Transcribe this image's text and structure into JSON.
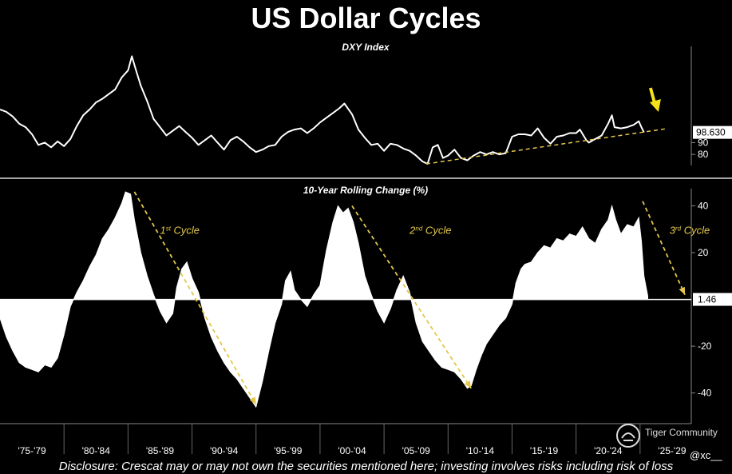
{
  "title": "US Dollar Cycles",
  "disclosure": "Disclosure: Crescat may or may not own the securities mentioned here; investing involves risks including risk of loss",
  "watermark": {
    "brand": "Tiger Community",
    "handle": "@xc__"
  },
  "colors": {
    "background": "#000000",
    "line": "#ffffff",
    "fill": "#ffffff",
    "annotation": "#e3c74a",
    "arrow": "#f5e21a"
  },
  "chart_data": [
    {
      "type": "line",
      "title": "DXY Index",
      "x_range": [
        1975,
        2029
      ],
      "ylim": [
        72,
        170
      ],
      "yticks": [
        80,
        90
      ],
      "last_value_label": "98.630",
      "points": [
        [
          1975.0,
          118
        ],
        [
          1975.5,
          116
        ],
        [
          1976.0,
          112
        ],
        [
          1976.5,
          106
        ],
        [
          1977.0,
          103
        ],
        [
          1977.5,
          97
        ],
        [
          1978.0,
          88
        ],
        [
          1978.5,
          90
        ],
        [
          1979.0,
          86
        ],
        [
          1979.5,
          91
        ],
        [
          1980.0,
          87
        ],
        [
          1980.5,
          93
        ],
        [
          1981.0,
          104
        ],
        [
          1981.5,
          113
        ],
        [
          1982.0,
          118
        ],
        [
          1982.5,
          124
        ],
        [
          1983.0,
          127
        ],
        [
          1983.5,
          131
        ],
        [
          1984.0,
          135
        ],
        [
          1984.5,
          145
        ],
        [
          1985.0,
          151
        ],
        [
          1985.3,
          163
        ],
        [
          1985.6,
          152
        ],
        [
          1986.0,
          138
        ],
        [
          1986.5,
          125
        ],
        [
          1987.0,
          110
        ],
        [
          1987.5,
          103
        ],
        [
          1988.0,
          96
        ],
        [
          1988.5,
          100
        ],
        [
          1989.0,
          104
        ],
        [
          1989.5,
          99
        ],
        [
          1990.0,
          94
        ],
        [
          1990.5,
          88
        ],
        [
          1991.0,
          92
        ],
        [
          1991.5,
          96
        ],
        [
          1992.0,
          90
        ],
        [
          1992.5,
          84
        ],
        [
          1993.0,
          92
        ],
        [
          1993.5,
          95
        ],
        [
          1994.0,
          91
        ],
        [
          1994.5,
          86
        ],
        [
          1995.0,
          82
        ],
        [
          1995.5,
          84
        ],
        [
          1996.0,
          87
        ],
        [
          1996.5,
          88
        ],
        [
          1997.0,
          95
        ],
        [
          1997.5,
          99
        ],
        [
          1998.0,
          101
        ],
        [
          1998.5,
          102
        ],
        [
          1999.0,
          98
        ],
        [
          1999.5,
          102
        ],
        [
          2000.0,
          107
        ],
        [
          2000.5,
          111
        ],
        [
          2001.0,
          115
        ],
        [
          2001.5,
          119
        ],
        [
          2001.9,
          123
        ],
        [
          2002.5,
          114
        ],
        [
          2003.0,
          101
        ],
        [
          2003.5,
          94
        ],
        [
          2004.0,
          88
        ],
        [
          2004.5,
          89
        ],
        [
          2005.0,
          83
        ],
        [
          2005.5,
          89
        ],
        [
          2006.0,
          88
        ],
        [
          2006.5,
          85
        ],
        [
          2007.0,
          83
        ],
        [
          2007.5,
          79
        ],
        [
          2008.0,
          74
        ],
        [
          2008.4,
          72
        ],
        [
          2008.8,
          86
        ],
        [
          2009.2,
          88
        ],
        [
          2009.6,
          77
        ],
        [
          2010.0,
          79
        ],
        [
          2010.5,
          84
        ],
        [
          2011.0,
          77
        ],
        [
          2011.5,
          75
        ],
        [
          2012.0,
          79
        ],
        [
          2012.5,
          82
        ],
        [
          2013.0,
          80
        ],
        [
          2013.5,
          82
        ],
        [
          2014.0,
          80
        ],
        [
          2014.5,
          81
        ],
        [
          2015.0,
          95
        ],
        [
          2015.5,
          97
        ],
        [
          2016.0,
          97
        ],
        [
          2016.5,
          96
        ],
        [
          2017.0,
          102
        ],
        [
          2017.5,
          94
        ],
        [
          2018.0,
          89
        ],
        [
          2018.5,
          95
        ],
        [
          2019.0,
          96
        ],
        [
          2019.5,
          98
        ],
        [
          2020.0,
          98
        ],
        [
          2020.3,
          101
        ],
        [
          2020.8,
          92
        ],
        [
          2021.0,
          90
        ],
        [
          2021.5,
          93
        ],
        [
          2022.0,
          96
        ],
        [
          2022.5,
          106
        ],
        [
          2022.8,
          113
        ],
        [
          2023.0,
          103
        ],
        [
          2023.5,
          102
        ],
        [
          2024.0,
          103
        ],
        [
          2024.5,
          105
        ],
        [
          2024.9,
          108
        ],
        [
          2025.1,
          103
        ],
        [
          2025.3,
          98.6
        ]
      ],
      "trendline": [
        [
          2008.3,
          72
        ],
        [
          2030.0,
          103
        ]
      ],
      "arrow_at": 2026.0
    },
    {
      "type": "area",
      "title": "10-Year Rolling Change (%)",
      "x_range": [
        1975,
        2029
      ],
      "ylim": [
        -48,
        46
      ],
      "yticks": [
        40,
        20,
        -20,
        -40
      ],
      "last_value_label": "1.46",
      "xticks": [
        "'75-'79",
        "'80-'84",
        "'85-'89",
        "'90-'94",
        "'95-'99",
        "'00-'04",
        "'05-'09",
        "'10-'14",
        "'15-'19",
        "'20-'24",
        "'25-'29"
      ],
      "points": [
        [
          1975.0,
          -8
        ],
        [
          1975.5,
          -16
        ],
        [
          1976.0,
          -22
        ],
        [
          1976.5,
          -27
        ],
        [
          1977.0,
          -29
        ],
        [
          1977.5,
          -30
        ],
        [
          1978.0,
          -31
        ],
        [
          1978.5,
          -28
        ],
        [
          1979.0,
          -29
        ],
        [
          1979.5,
          -25
        ],
        [
          1980.0,
          -15
        ],
        [
          1980.5,
          -3
        ],
        [
          1981.0,
          3
        ],
        [
          1981.5,
          8
        ],
        [
          1982.0,
          14
        ],
        [
          1982.5,
          19
        ],
        [
          1983.0,
          26
        ],
        [
          1983.5,
          30
        ],
        [
          1984.0,
          35
        ],
        [
          1984.5,
          41
        ],
        [
          1984.8,
          46
        ],
        [
          1985.2,
          45
        ],
        [
          1985.5,
          34
        ],
        [
          1986.0,
          20
        ],
        [
          1986.5,
          10
        ],
        [
          1987.0,
          2
        ],
        [
          1987.5,
          -5
        ],
        [
          1988.0,
          -10
        ],
        [
          1988.5,
          -6
        ],
        [
          1988.8,
          5
        ],
        [
          1989.2,
          13
        ],
        [
          1989.6,
          16
        ],
        [
          1990.0,
          9
        ],
        [
          1990.5,
          3
        ],
        [
          1991.0,
          -8
        ],
        [
          1991.5,
          -16
        ],
        [
          1992.0,
          -22
        ],
        [
          1992.5,
          -27
        ],
        [
          1993.0,
          -31
        ],
        [
          1993.5,
          -34
        ],
        [
          1994.0,
          -38
        ],
        [
          1994.5,
          -42
        ],
        [
          1995.0,
          -46
        ],
        [
          1995.5,
          -35
        ],
        [
          1996.0,
          -22
        ],
        [
          1996.5,
          -10
        ],
        [
          1997.0,
          -2
        ],
        [
          1997.3,
          8
        ],
        [
          1997.7,
          12
        ],
        [
          1998.0,
          4
        ],
        [
          1998.5,
          0
        ],
        [
          1999.0,
          -3
        ],
        [
          1999.5,
          2
        ],
        [
          2000.0,
          6
        ],
        [
          2000.5,
          21
        ],
        [
          2001.0,
          33
        ],
        [
          2001.4,
          40
        ],
        [
          2001.8,
          37
        ],
        [
          2002.2,
          39
        ],
        [
          2002.6,
          33
        ],
        [
          2003.0,
          24
        ],
        [
          2003.5,
          10
        ],
        [
          2004.0,
          2
        ],
        [
          2004.5,
          -5
        ],
        [
          2005.0,
          -10
        ],
        [
          2005.5,
          -4
        ],
        [
          2006.0,
          4
        ],
        [
          2006.5,
          10
        ],
        [
          2007.0,
          3
        ],
        [
          2007.5,
          -10
        ],
        [
          2008.0,
          -18
        ],
        [
          2008.5,
          -22
        ],
        [
          2009.0,
          -26
        ],
        [
          2009.5,
          -29
        ],
        [
          2010.0,
          -30
        ],
        [
          2010.5,
          -31
        ],
        [
          2011.0,
          -34
        ],
        [
          2011.5,
          -38
        ],
        [
          2011.8,
          -37
        ],
        [
          2012.2,
          -30
        ],
        [
          2012.6,
          -24
        ],
        [
          2013.0,
          -19
        ],
        [
          2013.5,
          -15
        ],
        [
          2014.0,
          -11
        ],
        [
          2014.5,
          -8
        ],
        [
          2015.0,
          -2
        ],
        [
          2015.3,
          7
        ],
        [
          2015.7,
          13
        ],
        [
          2016.0,
          15
        ],
        [
          2016.5,
          16
        ],
        [
          2017.0,
          20
        ],
        [
          2017.5,
          23
        ],
        [
          2018.0,
          22
        ],
        [
          2018.5,
          26
        ],
        [
          2019.0,
          25
        ],
        [
          2019.5,
          28
        ],
        [
          2020.0,
          27
        ],
        [
          2020.5,
          31
        ],
        [
          2021.0,
          26
        ],
        [
          2021.5,
          24
        ],
        [
          2022.0,
          30
        ],
        [
          2022.5,
          34
        ],
        [
          2022.8,
          40
        ],
        [
          2023.1,
          34
        ],
        [
          2023.5,
          28
        ],
        [
          2024.0,
          32
        ],
        [
          2024.5,
          31
        ],
        [
          2024.9,
          35
        ],
        [
          2025.1,
          25
        ],
        [
          2025.3,
          10
        ],
        [
          2025.6,
          1.46
        ]
      ],
      "annotations": [
        {
          "label_main": "1",
          "label_sup": "st",
          "label_rest": " Cycle",
          "x": 1987.5,
          "y": 28,
          "trend_from": [
            1985.5,
            46
          ],
          "trend_to": [
            1995.0,
            -45
          ]
        },
        {
          "label_main": "2",
          "label_sup": "nd",
          "label_rest": " Cycle",
          "x": 2007.0,
          "y": 28,
          "trend_from": [
            2002.5,
            40
          ],
          "trend_to": [
            2011.8,
            -38
          ]
        },
        {
          "label_main": "3",
          "label_sup": "rd",
          "label_rest": " Cycle",
          "x": 2027.3,
          "y": 28,
          "trend_from": [
            2025.2,
            42
          ],
          "trend_to": [
            2028.5,
            2
          ]
        }
      ]
    }
  ]
}
